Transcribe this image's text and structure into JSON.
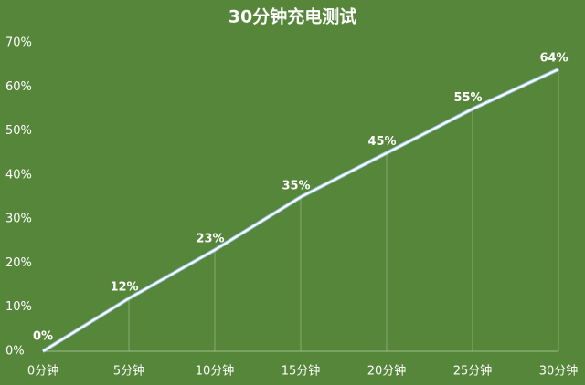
{
  "chart_data": {
    "type": "line",
    "title": "30分钟充电测试",
    "categories": [
      "0分钟",
      "5分钟",
      "10分钟",
      "15分钟",
      "20分钟",
      "25分钟",
      "30分钟"
    ],
    "values": [
      0,
      12,
      23,
      35,
      45,
      55,
      64
    ],
    "value_labels": [
      "0%",
      "12%",
      "23%",
      "35%",
      "45%",
      "55%",
      "64%"
    ],
    "color": "#ffffff",
    "ylim": [
      0,
      70
    ],
    "yticks": [
      {
        "value": 0,
        "label": "0%"
      },
      {
        "value": 10,
        "label": "10%"
      },
      {
        "value": 20,
        "label": "20%"
      },
      {
        "value": 30,
        "label": "30%"
      },
      {
        "value": 40,
        "label": "40%"
      },
      {
        "value": 50,
        "label": "50%"
      },
      {
        "value": 60,
        "label": "60%"
      },
      {
        "value": 70,
        "label": "70%"
      }
    ]
  }
}
